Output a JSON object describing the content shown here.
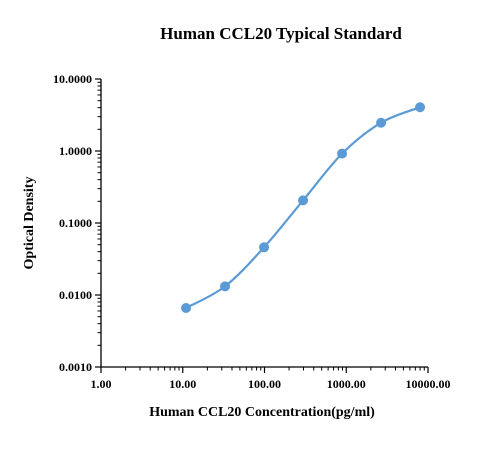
{
  "chart_data": {
    "type": "scatter",
    "title": "Human CCL20 Typical Standard",
    "xlabel": "Human CCL20 Concentration(pg/ml)",
    "ylabel": "Optical Density",
    "x_scale": "log",
    "y_scale": "log",
    "xlim": [
      1,
      10000
    ],
    "ylim": [
      0.001,
      10
    ],
    "x_ticks": [
      {
        "value": 1,
        "label": "1.00"
      },
      {
        "value": 10,
        "label": "10.00"
      },
      {
        "value": 100,
        "label": "100.00"
      },
      {
        "value": 1000,
        "label": "1000.00"
      },
      {
        "value": 10000,
        "label": "10000.00"
      }
    ],
    "y_ticks": [
      {
        "value": 0.001,
        "label": "0.0010"
      },
      {
        "value": 0.01,
        "label": "0.0100"
      },
      {
        "value": 0.1,
        "label": "0.1000"
      },
      {
        "value": 1,
        "label": "1.0000"
      },
      {
        "value": 10,
        "label": "10.0000"
      }
    ],
    "grid": false,
    "series": [
      {
        "x": [
          10.97,
          32.92,
          98.77,
          296.3,
          888.9,
          2667,
          8000
        ],
        "y": [
          0.0066,
          0.0132,
          0.046,
          0.206,
          0.92,
          2.47,
          4.05
        ],
        "marker": "circle",
        "line": "smooth"
      }
    ],
    "colors": {
      "series": "#5B9BD5",
      "axis": "#000000"
    }
  }
}
